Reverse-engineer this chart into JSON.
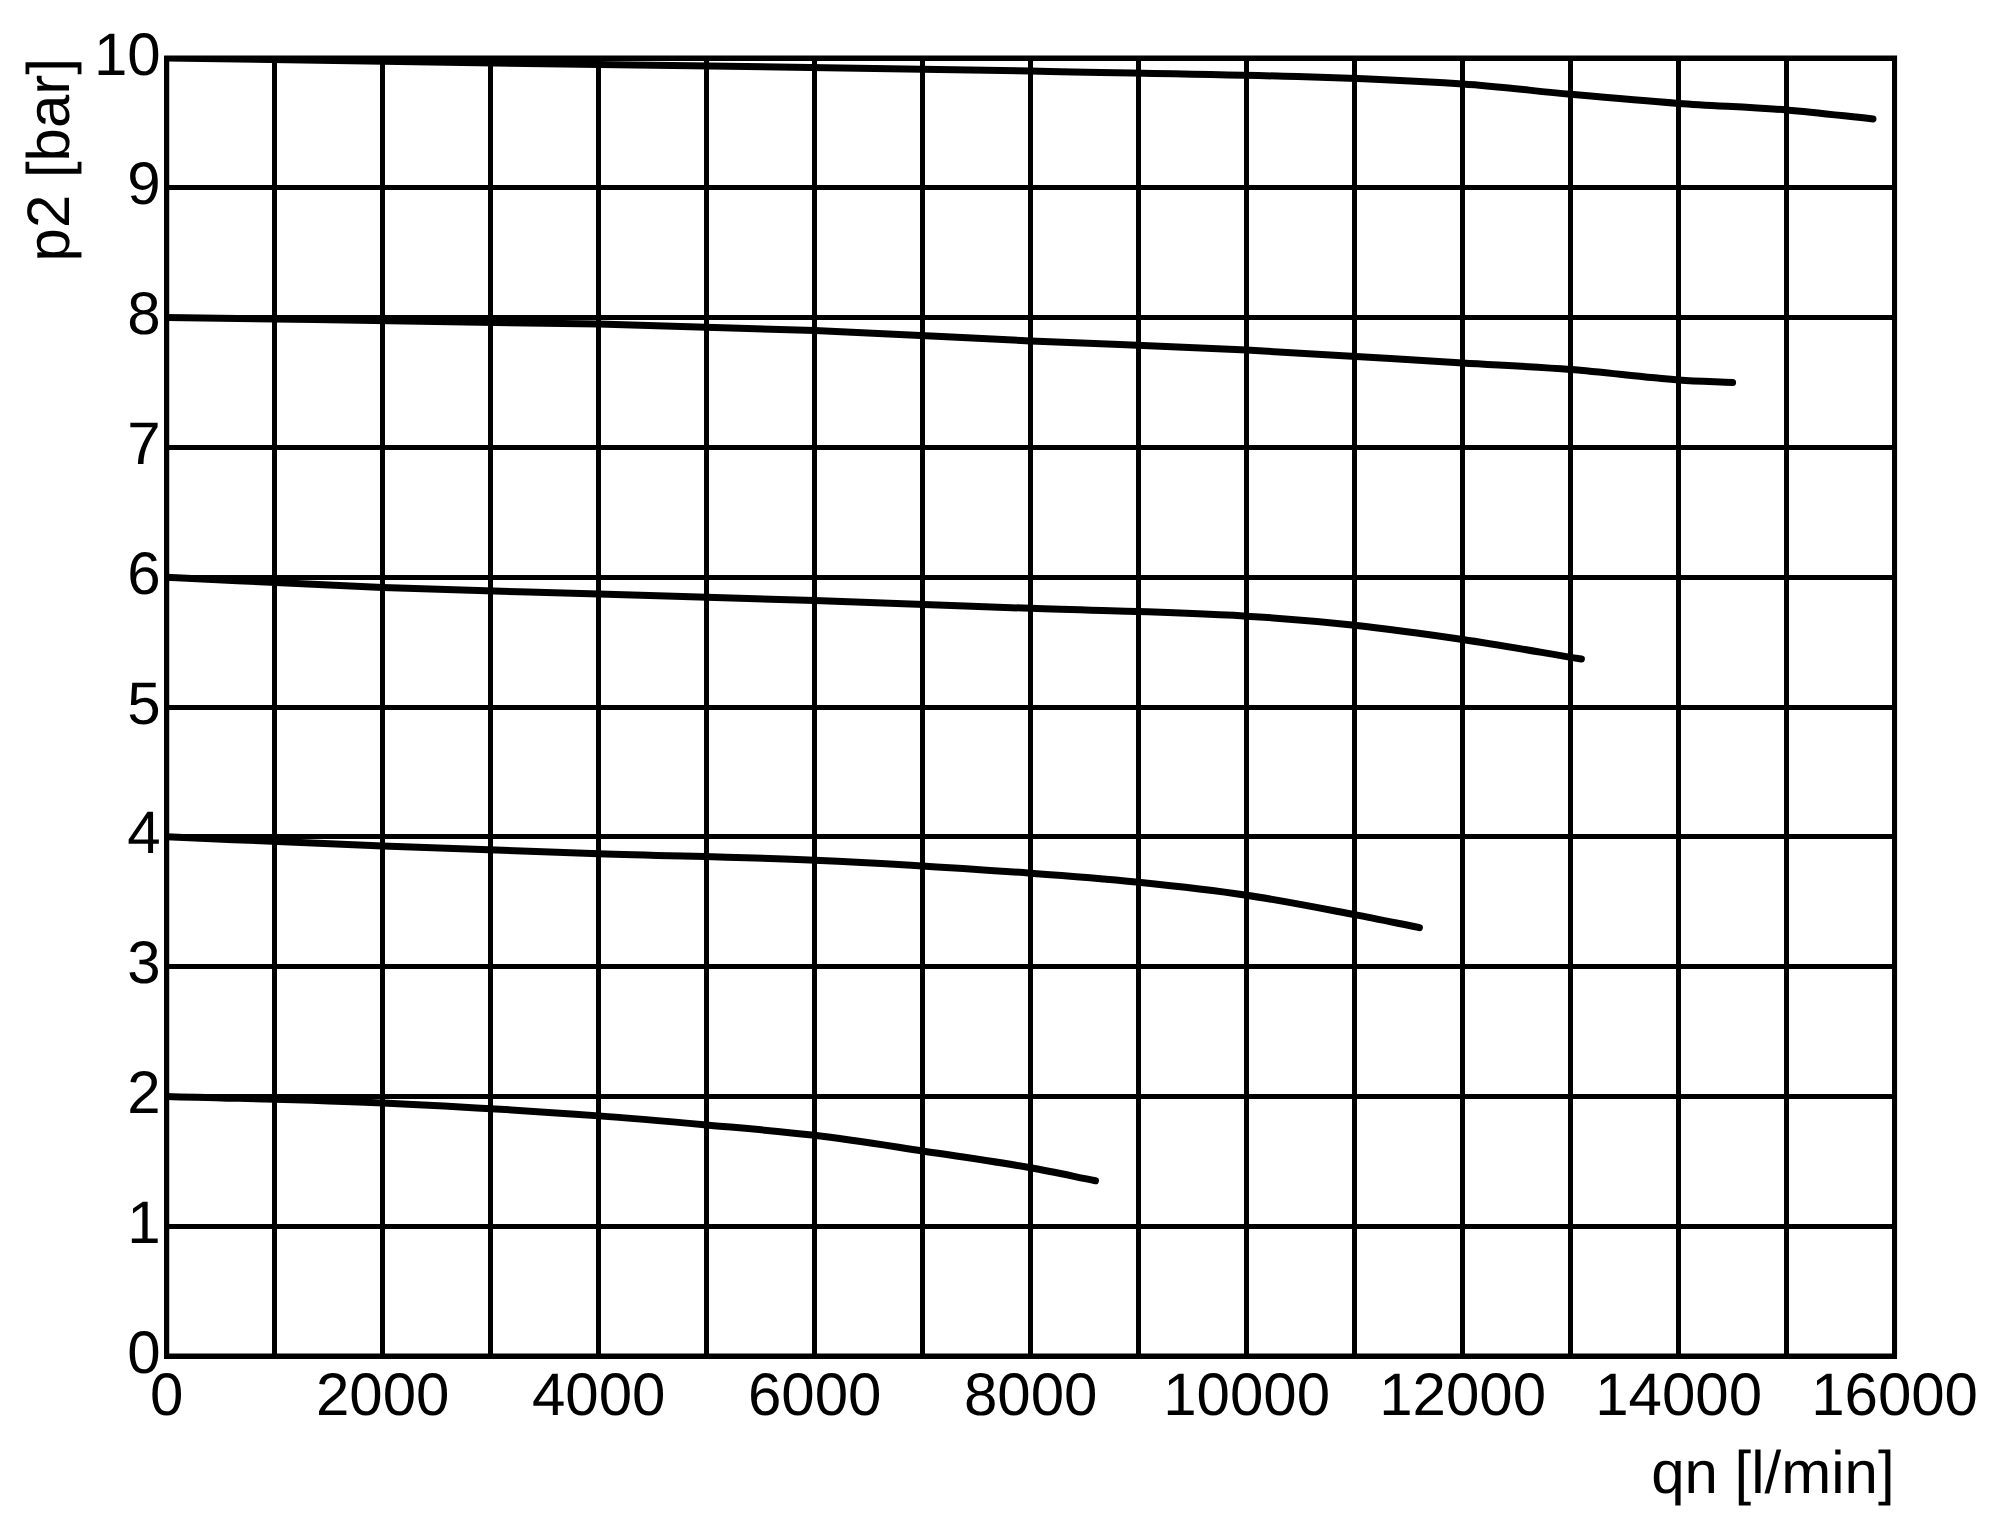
{
  "chart_data": {
    "type": "line",
    "xlabel": "qn [l/min]",
    "ylabel": "p2 [bar]",
    "xlim": [
      0,
      16000
    ],
    "ylim": [
      0,
      10
    ],
    "xticks": [
      0,
      {
        "value": 1000,
        "label": null
      },
      2000,
      {
        "value": 3000,
        "label": null
      },
      4000,
      {
        "value": 5000,
        "label": null
      },
      6000,
      {
        "value": 7000,
        "label": null
      },
      8000,
      {
        "value": 9000,
        "label": null
      },
      10000,
      {
        "value": 11000,
        "label": null
      },
      12000,
      {
        "value": 13000,
        "label": null
      },
      14000,
      {
        "value": 15000,
        "label": null
      },
      16000
    ],
    "yticks": [
      0,
      1,
      2,
      3,
      4,
      5,
      6,
      7,
      8,
      9,
      10
    ],
    "grid": true,
    "marker": "none",
    "line_style": "solid",
    "series": [
      {
        "color": "#000000",
        "x": [
          0,
          4000,
          8000,
          12000,
          13000,
          14000,
          15000,
          15800
        ],
        "values": [
          10,
          9.95,
          9.9,
          9.8,
          9.72,
          9.65,
          9.6,
          9.53
        ]
      },
      {
        "color": "#000000",
        "x": [
          0,
          4000,
          6000,
          8000,
          10000,
          12000,
          13000,
          14000,
          14500
        ],
        "values": [
          8,
          7.95,
          7.9,
          7.82,
          7.75,
          7.65,
          7.6,
          7.52,
          7.5
        ]
      },
      {
        "color": "#000000",
        "x": [
          0,
          2000,
          4000,
          6000,
          8000,
          10000,
          11000,
          12000,
          13100
        ],
        "values": [
          6,
          5.92,
          5.87,
          5.82,
          5.76,
          5.7,
          5.63,
          5.52,
          5.37
        ]
      },
      {
        "color": "#000000",
        "x": [
          0,
          2000,
          4000,
          6000,
          8000,
          9000,
          10000,
          11000,
          11600
        ],
        "values": [
          4,
          3.93,
          3.87,
          3.82,
          3.72,
          3.65,
          3.55,
          3.4,
          3.3
        ]
      },
      {
        "color": "#000000",
        "x": [
          0,
          2000,
          4000,
          5000,
          6000,
          7000,
          8000,
          8600
        ],
        "values": [
          2,
          1.95,
          1.85,
          1.78,
          1.7,
          1.58,
          1.45,
          1.35
        ]
      }
    ]
  }
}
